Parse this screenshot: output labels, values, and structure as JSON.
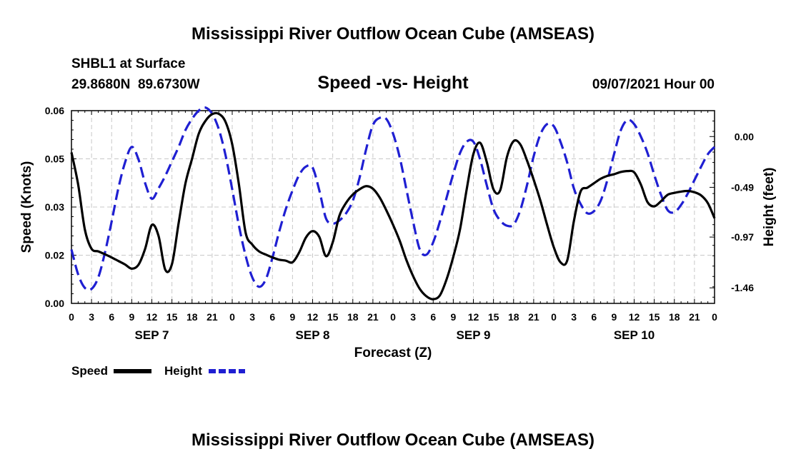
{
  "header": {
    "title_top": "Mississippi River Outflow Ocean Cube (AMSEAS)",
    "station": "SHBL1 at Surface",
    "location": "29.8680N  89.6730W",
    "chart_title": "Speed -vs- Height",
    "datetime": "09/07/2021 Hour 00",
    "title_bottom": "Mississippi River Outflow Ocean Cube (AMSEAS)"
  },
  "chart_data": {
    "type": "line",
    "title": "Speed -vs- Height",
    "xlabel": "Forecast (Z)",
    "ylabel": "Speed (Knots)",
    "y2label": "Height (feet)",
    "xlim": [
      0,
      96
    ],
    "ylim": [
      0,
      0.06
    ],
    "y2lim": [
      -1.61,
      0.25
    ],
    "x_tick_values": [
      0,
      3,
      6,
      9,
      12,
      15,
      18,
      21,
      24,
      27,
      30,
      33,
      36,
      39,
      42,
      45,
      48,
      51,
      54,
      57,
      60,
      63,
      66,
      69,
      72,
      75,
      78,
      81,
      84,
      87,
      90,
      93,
      96
    ],
    "x_tick_labels": [
      "0",
      "3",
      "6",
      "9",
      "12",
      "15",
      "18",
      "21",
      "0",
      "3",
      "6",
      "9",
      "12",
      "15",
      "18",
      "21",
      "0",
      "3",
      "6",
      "9",
      "12",
      "15",
      "18",
      "21",
      "0",
      "3",
      "6",
      "9",
      "12",
      "15",
      "18",
      "21",
      "0"
    ],
    "y_ticks": [
      {
        "value": 0.0,
        "label": "0.00"
      },
      {
        "value": 0.015,
        "label": "0.02"
      },
      {
        "value": 0.03,
        "label": "0.03"
      },
      {
        "value": 0.045,
        "label": "0.05"
      },
      {
        "value": 0.06,
        "label": "0.06"
      }
    ],
    "y2_ticks": [
      {
        "value": 0.0,
        "label": "0.00"
      },
      {
        "value": -0.49,
        "label": "-0.49"
      },
      {
        "value": -0.97,
        "label": "-0.97"
      },
      {
        "value": -1.46,
        "label": "-1.46"
      }
    ],
    "date_labels": [
      {
        "x": 12,
        "label": "SEP 7"
      },
      {
        "x": 36,
        "label": "SEP 8"
      },
      {
        "x": 60,
        "label": "SEP 9"
      },
      {
        "x": 84,
        "label": "SEP 10"
      }
    ],
    "grid": true,
    "legend_position": "bottom-left",
    "series": [
      {
        "name": "Speed",
        "axis": "left",
        "color": "#000000",
        "dash": "solid",
        "points": [
          [
            0,
            0.047
          ],
          [
            1,
            0.037
          ],
          [
            2,
            0.023
          ],
          [
            3,
            0.017
          ],
          [
            4,
            0.0162
          ],
          [
            5,
            0.0153
          ],
          [
            6,
            0.0143
          ],
          [
            7,
            0.0132
          ],
          [
            8,
            0.0121
          ],
          [
            9,
            0.0108
          ],
          [
            10,
            0.012
          ],
          [
            11,
            0.017
          ],
          [
            12,
            0.0244
          ],
          [
            13,
            0.021
          ],
          [
            14,
            0.0105
          ],
          [
            15,
            0.0122
          ],
          [
            16,
            0.025
          ],
          [
            17,
            0.0372
          ],
          [
            18,
            0.045
          ],
          [
            19,
            0.0528
          ],
          [
            20,
            0.0568
          ],
          [
            21,
            0.0589
          ],
          [
            22,
            0.059
          ],
          [
            23,
            0.0565
          ],
          [
            24,
            0.0495
          ],
          [
            25,
            0.037
          ],
          [
            26,
            0.022
          ],
          [
            27,
            0.0183
          ],
          [
            28,
            0.0162
          ],
          [
            29,
            0.0152
          ],
          [
            30,
            0.0143
          ],
          [
            31,
            0.0136
          ],
          [
            32,
            0.0133
          ],
          [
            33,
            0.0128
          ],
          [
            34,
            0.0159
          ],
          [
            35,
            0.0205
          ],
          [
            36,
            0.0225
          ],
          [
            37,
            0.0207
          ],
          [
            38,
            0.0147
          ],
          [
            39,
            0.019
          ],
          [
            40,
            0.0273
          ],
          [
            41,
            0.0313
          ],
          [
            42,
            0.0339
          ],
          [
            43,
            0.0355
          ],
          [
            44,
            0.0365
          ],
          [
            45,
            0.0357
          ],
          [
            46,
            0.033
          ],
          [
            47,
            0.029
          ],
          [
            48,
            0.0245
          ],
          [
            49,
            0.0195
          ],
          [
            50,
            0.0135
          ],
          [
            51,
            0.0085
          ],
          [
            52,
            0.0045
          ],
          [
            53,
            0.0022
          ],
          [
            54,
            0.0013
          ],
          [
            55,
            0.0025
          ],
          [
            56,
            0.0075
          ],
          [
            57,
            0.0145
          ],
          [
            58,
            0.023
          ],
          [
            59,
            0.0355
          ],
          [
            60,
            0.0465
          ],
          [
            61,
            0.05
          ],
          [
            62,
            0.044
          ],
          [
            63,
            0.0355
          ],
          [
            64,
            0.0352
          ],
          [
            65,
            0.0455
          ],
          [
            66,
            0.0505
          ],
          [
            67,
            0.0495
          ],
          [
            68,
            0.0445
          ],
          [
            69,
            0.0385
          ],
          [
            70,
            0.032
          ],
          [
            71,
            0.0245
          ],
          [
            72,
            0.0175
          ],
          [
            73,
            0.0128
          ],
          [
            74,
            0.0133
          ],
          [
            75,
            0.0256
          ],
          [
            76,
            0.0348
          ],
          [
            77,
            0.036
          ],
          [
            78,
            0.0374
          ],
          [
            79,
            0.0388
          ],
          [
            80,
            0.0397
          ],
          [
            81,
            0.0402
          ],
          [
            82,
            0.0409
          ],
          [
            83,
            0.0412
          ],
          [
            84,
            0.0408
          ],
          [
            85,
            0.037
          ],
          [
            86,
            0.0315
          ],
          [
            87,
            0.0302
          ],
          [
            88,
            0.0318
          ],
          [
            89,
            0.0338
          ],
          [
            90,
            0.0344
          ],
          [
            91,
            0.0348
          ],
          [
            92,
            0.035
          ],
          [
            93,
            0.0346
          ],
          [
            94,
            0.0336
          ],
          [
            95,
            0.0312
          ],
          [
            96,
            0.0265
          ]
        ]
      },
      {
        "name": "Height",
        "axis": "right",
        "color": "#1f1fd2",
        "dash": "dashed",
        "points": [
          [
            0,
            -1.09
          ],
          [
            1,
            -1.33
          ],
          [
            2,
            -1.46
          ],
          [
            3,
            -1.47
          ],
          [
            4,
            -1.36
          ],
          [
            5,
            -1.12
          ],
          [
            6,
            -0.82
          ],
          [
            7,
            -0.5
          ],
          [
            8,
            -0.25
          ],
          [
            9,
            -0.1
          ],
          [
            10,
            -0.22
          ],
          [
            11,
            -0.45
          ],
          [
            12,
            -0.6
          ],
          [
            13,
            -0.5
          ],
          [
            14,
            -0.38
          ],
          [
            15,
            -0.24
          ],
          [
            16,
            -0.1
          ],
          [
            17,
            0.06
          ],
          [
            18,
            0.17
          ],
          [
            19,
            0.25
          ],
          [
            20,
            0.28
          ],
          [
            21,
            0.22
          ],
          [
            22,
            0.07
          ],
          [
            23,
            -0.18
          ],
          [
            24,
            -0.51
          ],
          [
            25,
            -0.86
          ],
          [
            26,
            -1.15
          ],
          [
            27,
            -1.36
          ],
          [
            28,
            -1.45
          ],
          [
            29,
            -1.38
          ],
          [
            30,
            -1.17
          ],
          [
            31,
            -0.92
          ],
          [
            32,
            -0.7
          ],
          [
            33,
            -0.52
          ],
          [
            34,
            -0.37
          ],
          [
            35,
            -0.29
          ],
          [
            36,
            -0.3
          ],
          [
            37,
            -0.52
          ],
          [
            38,
            -0.79
          ],
          [
            39,
            -0.84
          ],
          [
            40,
            -0.81
          ],
          [
            41,
            -0.74
          ],
          [
            42,
            -0.62
          ],
          [
            43,
            -0.4
          ],
          [
            44,
            -0.12
          ],
          [
            45,
            0.11
          ],
          [
            46,
            0.18
          ],
          [
            47,
            0.17
          ],
          [
            48,
            0.03
          ],
          [
            49,
            -0.2
          ],
          [
            50,
            -0.51
          ],
          [
            51,
            -0.82
          ],
          [
            52,
            -1.09
          ],
          [
            53,
            -1.14
          ],
          [
            54,
            -1.02
          ],
          [
            55,
            -0.82
          ],
          [
            56,
            -0.59
          ],
          [
            57,
            -0.36
          ],
          [
            58,
            -0.16
          ],
          [
            59,
            -0.05
          ],
          [
            60,
            -0.05
          ],
          [
            61,
            -0.22
          ],
          [
            62,
            -0.47
          ],
          [
            63,
            -0.7
          ],
          [
            64,
            -0.81
          ],
          [
            65,
            -0.86
          ],
          [
            66,
            -0.85
          ],
          [
            67,
            -0.71
          ],
          [
            68,
            -0.47
          ],
          [
            69,
            -0.19
          ],
          [
            70,
            0.02
          ],
          [
            71,
            0.12
          ],
          [
            72,
            0.1
          ],
          [
            73,
            -0.05
          ],
          [
            74,
            -0.25
          ],
          [
            75,
            -0.5
          ],
          [
            76,
            -0.65
          ],
          [
            77,
            -0.74
          ],
          [
            78,
            -0.72
          ],
          [
            79,
            -0.62
          ],
          [
            80,
            -0.42
          ],
          [
            81,
            -0.17
          ],
          [
            82,
            0.06
          ],
          [
            83,
            0.16
          ],
          [
            84,
            0.12
          ],
          [
            85,
            0.0
          ],
          [
            86,
            -0.16
          ],
          [
            87,
            -0.37
          ],
          [
            88,
            -0.56
          ],
          [
            89,
            -0.71
          ],
          [
            90,
            -0.73
          ],
          [
            91,
            -0.66
          ],
          [
            92,
            -0.55
          ],
          [
            93,
            -0.42
          ],
          [
            94,
            -0.29
          ],
          [
            95,
            -0.17
          ],
          [
            96,
            -0.1
          ]
        ]
      }
    ]
  }
}
